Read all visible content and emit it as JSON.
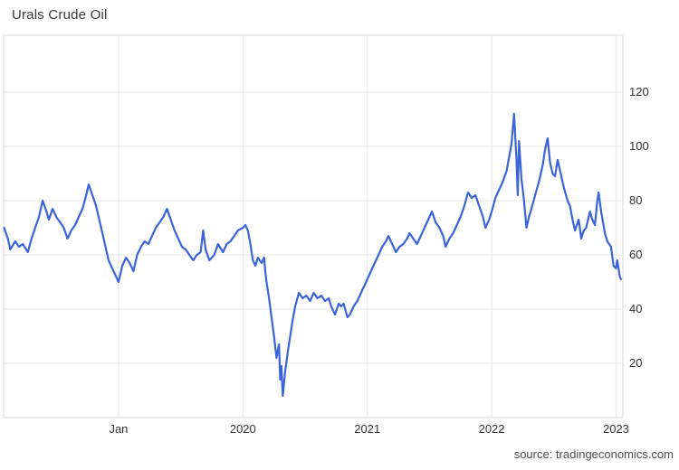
{
  "title": "Urals Crude Oil",
  "source_note": "source: tradingeconomics.com",
  "colors": {
    "line": "#3b63da",
    "grid": "#e7e7e7",
    "frame": "#d9d9d9",
    "title_text": "#3a3a3a",
    "tick_text": "#333333",
    "source_text": "#4d4d4d",
    "background": "#ffffff"
  },
  "chart_data": {
    "type": "line",
    "title": "Urals Crude Oil",
    "xlabel": "",
    "ylabel": "",
    "grid": true,
    "legend_visible": false,
    "xlim": [
      2018.076,
      2023.055
    ],
    "ylim": [
      0,
      141
    ],
    "y_ticks": [
      20,
      40,
      60,
      80,
      100,
      120
    ],
    "x_ticks": [
      {
        "label": "Jan",
        "t": 2019.0
      },
      {
        "label": "2020",
        "t": 2020.0
      },
      {
        "label": "2021",
        "t": 2021.0
      },
      {
        "label": "2022",
        "t": 2022.0
      },
      {
        "label": "2023",
        "t": 2023.0
      }
    ],
    "series": [
      {
        "name": "Urals Crude Oil",
        "points": [
          [
            2018.08,
            70
          ],
          [
            2018.11,
            66
          ],
          [
            2018.13,
            62
          ],
          [
            2018.17,
            65
          ],
          [
            2018.2,
            63
          ],
          [
            2018.23,
            64
          ],
          [
            2018.27,
            61
          ],
          [
            2018.3,
            66
          ],
          [
            2018.33,
            70
          ],
          [
            2018.36,
            74
          ],
          [
            2018.39,
            80
          ],
          [
            2018.42,
            76
          ],
          [
            2018.44,
            73
          ],
          [
            2018.47,
            77
          ],
          [
            2018.5,
            74
          ],
          [
            2018.53,
            72
          ],
          [
            2018.56,
            70
          ],
          [
            2018.59,
            66
          ],
          [
            2018.62,
            69
          ],
          [
            2018.65,
            71
          ],
          [
            2018.68,
            74
          ],
          [
            2018.71,
            77
          ],
          [
            2018.74,
            82
          ],
          [
            2018.76,
            86
          ],
          [
            2018.79,
            82
          ],
          [
            2018.82,
            78
          ],
          [
            2018.85,
            72
          ],
          [
            2018.88,
            66
          ],
          [
            2018.9,
            62
          ],
          [
            2018.92,
            58
          ],
          [
            2018.95,
            55
          ],
          [
            2018.98,
            52
          ],
          [
            2019.0,
            50
          ],
          [
            2019.03,
            56
          ],
          [
            2019.06,
            59
          ],
          [
            2019.09,
            57
          ],
          [
            2019.12,
            54
          ],
          [
            2019.15,
            60
          ],
          [
            2019.18,
            63
          ],
          [
            2019.21,
            65
          ],
          [
            2019.24,
            64
          ],
          [
            2019.27,
            67
          ],
          [
            2019.3,
            70
          ],
          [
            2019.33,
            72
          ],
          [
            2019.36,
            74
          ],
          [
            2019.39,
            77
          ],
          [
            2019.42,
            73
          ],
          [
            2019.45,
            69
          ],
          [
            2019.48,
            66
          ],
          [
            2019.51,
            63
          ],
          [
            2019.54,
            62
          ],
          [
            2019.57,
            60
          ],
          [
            2019.6,
            58
          ],
          [
            2019.63,
            60
          ],
          [
            2019.66,
            61
          ],
          [
            2019.68,
            69
          ],
          [
            2019.7,
            62
          ],
          [
            2019.73,
            58
          ],
          [
            2019.77,
            60
          ],
          [
            2019.8,
            64
          ],
          [
            2019.84,
            61
          ],
          [
            2019.87,
            64
          ],
          [
            2019.9,
            65
          ],
          [
            2019.93,
            67
          ],
          [
            2019.96,
            69
          ],
          [
            2020.0,
            70
          ],
          [
            2020.02,
            71
          ],
          [
            2020.04,
            69
          ],
          [
            2020.06,
            64
          ],
          [
            2020.08,
            58
          ],
          [
            2020.1,
            56
          ],
          [
            2020.12,
            59
          ],
          [
            2020.15,
            57
          ],
          [
            2020.17,
            59
          ],
          [
            2020.18,
            54
          ],
          [
            2020.19,
            50
          ],
          [
            2020.21,
            44
          ],
          [
            2020.23,
            37
          ],
          [
            2020.25,
            30
          ],
          [
            2020.27,
            22
          ],
          [
            2020.29,
            27
          ],
          [
            2020.3,
            14
          ],
          [
            2020.31,
            19
          ],
          [
            2020.32,
            8
          ],
          [
            2020.34,
            17
          ],
          [
            2020.36,
            24
          ],
          [
            2020.38,
            30
          ],
          [
            2020.4,
            36
          ],
          [
            2020.42,
            41
          ],
          [
            2020.45,
            46
          ],
          [
            2020.48,
            44
          ],
          [
            2020.51,
            45
          ],
          [
            2020.54,
            43
          ],
          [
            2020.57,
            46
          ],
          [
            2020.6,
            44
          ],
          [
            2020.63,
            45
          ],
          [
            2020.66,
            43
          ],
          [
            2020.69,
            44
          ],
          [
            2020.71,
            41
          ],
          [
            2020.74,
            38
          ],
          [
            2020.77,
            42
          ],
          [
            2020.79,
            41
          ],
          [
            2020.81,
            42
          ],
          [
            2020.84,
            37
          ],
          [
            2020.86,
            38
          ],
          [
            2020.89,
            41
          ],
          [
            2020.92,
            43
          ],
          [
            2020.95,
            46
          ],
          [
            2020.98,
            49
          ],
          [
            2021.0,
            51
          ],
          [
            2021.03,
            54
          ],
          [
            2021.06,
            57
          ],
          [
            2021.09,
            60
          ],
          [
            2021.12,
            63
          ],
          [
            2021.15,
            65
          ],
          [
            2021.17,
            67
          ],
          [
            2021.2,
            64
          ],
          [
            2021.23,
            61
          ],
          [
            2021.26,
            63
          ],
          [
            2021.29,
            64
          ],
          [
            2021.32,
            66
          ],
          [
            2021.34,
            68
          ],
          [
            2021.37,
            66
          ],
          [
            2021.4,
            64
          ],
          [
            2021.43,
            67
          ],
          [
            2021.46,
            70
          ],
          [
            2021.49,
            73
          ],
          [
            2021.52,
            76
          ],
          [
            2021.55,
            72
          ],
          [
            2021.58,
            70
          ],
          [
            2021.61,
            67
          ],
          [
            2021.63,
            63
          ],
          [
            2021.66,
            66
          ],
          [
            2021.69,
            68
          ],
          [
            2021.72,
            71
          ],
          [
            2021.75,
            74
          ],
          [
            2021.78,
            78
          ],
          [
            2021.81,
            83
          ],
          [
            2021.84,
            81
          ],
          [
            2021.87,
            82
          ],
          [
            2021.9,
            78
          ],
          [
            2021.93,
            74
          ],
          [
            2021.95,
            70
          ],
          [
            2021.98,
            73
          ],
          [
            2022.0,
            76
          ],
          [
            2022.03,
            81
          ],
          [
            2022.06,
            84
          ],
          [
            2022.09,
            87
          ],
          [
            2022.12,
            91
          ],
          [
            2022.14,
            96
          ],
          [
            2022.16,
            101
          ],
          [
            2022.18,
            112
          ],
          [
            2022.2,
            95
          ],
          [
            2022.21,
            82
          ],
          [
            2022.22,
            102
          ],
          [
            2022.24,
            88
          ],
          [
            2022.26,
            80
          ],
          [
            2022.28,
            70
          ],
          [
            2022.3,
            74
          ],
          [
            2022.32,
            77
          ],
          [
            2022.35,
            82
          ],
          [
            2022.38,
            87
          ],
          [
            2022.41,
            93
          ],
          [
            2022.43,
            99
          ],
          [
            2022.45,
            103
          ],
          [
            2022.47,
            94
          ],
          [
            2022.49,
            90
          ],
          [
            2022.51,
            89
          ],
          [
            2022.53,
            95
          ],
          [
            2022.56,
            89
          ],
          [
            2022.58,
            85
          ],
          [
            2022.61,
            80
          ],
          [
            2022.63,
            78
          ],
          [
            2022.65,
            73
          ],
          [
            2022.67,
            69
          ],
          [
            2022.7,
            73
          ],
          [
            2022.72,
            66
          ],
          [
            2022.74,
            69
          ],
          [
            2022.76,
            70
          ],
          [
            2022.79,
            76
          ],
          [
            2022.81,
            73
          ],
          [
            2022.83,
            71
          ],
          [
            2022.85,
            80
          ],
          [
            2022.86,
            83
          ],
          [
            2022.88,
            76
          ],
          [
            2022.91,
            68
          ],
          [
            2022.93,
            65
          ],
          [
            2022.96,
            63
          ],
          [
            2022.98,
            56
          ],
          [
            2023.0,
            55
          ],
          [
            2023.01,
            58
          ],
          [
            2023.03,
            52
          ],
          [
            2023.04,
            51
          ]
        ]
      }
    ]
  }
}
